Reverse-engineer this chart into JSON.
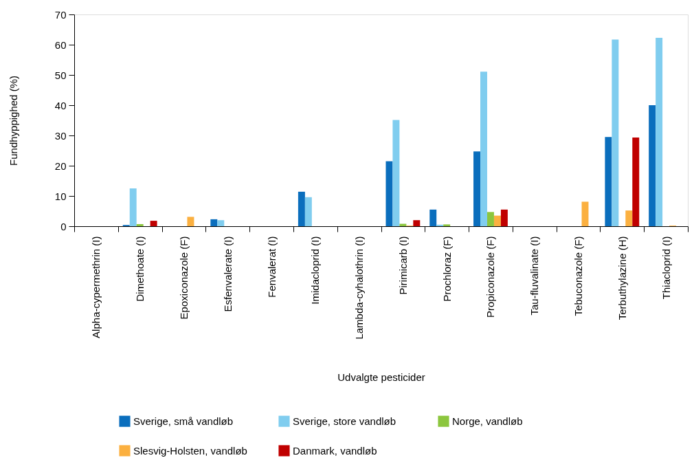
{
  "chart_data": {
    "type": "bar",
    "xlabel": "Udvalgte pesticider",
    "ylabel": "Fundhyppighed (%)",
    "categories": [
      "Alpha-cypermethrin (I)",
      "Dimethoate (I)",
      "Epoxiconazole (F)",
      "Esfenvalerate (I)",
      "Fenvalerat (I)",
      "Imidacloprid (I)",
      "Lambda-cyhalothrin (I)",
      "Pirimicarb (I)",
      "Prochloraz (F)",
      "Propiconazole (F)",
      "Tau-fluvalinate (I)",
      "Tebuconazole (F)",
      "Terbuthylazine (H)",
      "Thiacloprid (I)"
    ],
    "series": [
      {
        "name": "Sverige, små vandløb",
        "color": "#0a6ebd",
        "values": [
          null,
          0.4,
          null,
          2.3,
          null,
          11.4,
          null,
          21.5,
          5.5,
          24.7,
          null,
          null,
          29.5,
          40.0
        ]
      },
      {
        "name": "Sverige, store vandløb",
        "color": "#80cdef",
        "values": [
          null,
          12.5,
          null,
          2.0,
          null,
          9.6,
          null,
          35.1,
          0.5,
          51.1,
          null,
          null,
          61.7,
          62.3
        ]
      },
      {
        "name": "Norge, vandløb",
        "color": "#8cc63e",
        "values": [
          null,
          0.7,
          null,
          null,
          null,
          null,
          null,
          0.8,
          0.6,
          4.7,
          null,
          null,
          null,
          null
        ]
      },
      {
        "name": "Slesvig-Holsten, vandløb",
        "color": "#fbb040",
        "values": [
          null,
          null,
          3.1,
          null,
          null,
          null,
          null,
          0.2,
          null,
          3.5,
          null,
          8.1,
          5.2,
          0.2
        ]
      },
      {
        "name": "Danmark, vandløb",
        "color": "#c00000",
        "values": [
          null,
          1.8,
          null,
          null,
          null,
          null,
          null,
          2.0,
          null,
          5.5,
          null,
          null,
          29.3,
          null
        ]
      }
    ],
    "ylim": [
      0,
      70
    ],
    "yticks": [
      0,
      10,
      20,
      30,
      40,
      50,
      60,
      70
    ],
    "grid": false,
    "legend": "bottom"
  }
}
